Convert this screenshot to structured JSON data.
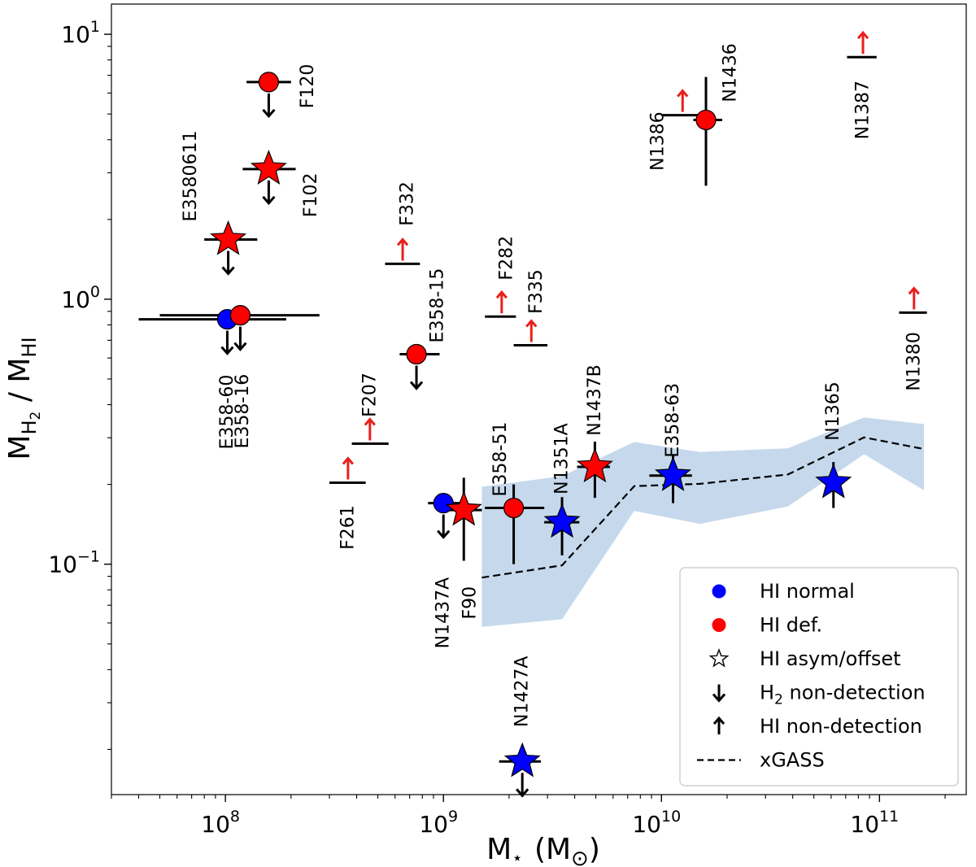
{
  "chart_data": {
    "type": "scatter",
    "xscale": "log",
    "yscale": "log",
    "xlim": [
      30000000.0,
      250000000000.0
    ],
    "ylim": [
      0.0135,
      13.0
    ],
    "xlabel": {
      "main": "M",
      "sub": "⋆",
      "rest": "(M",
      "sub2": "⊙",
      "close": ")"
    },
    "ylabel": {
      "main": "M",
      "sub1": "H",
      "sub1b": "2",
      "sep": " / M",
      "sub2": "HI"
    },
    "x_ticks": [
      {
        "value": 100000000.0,
        "base": "10",
        "exp": "8"
      },
      {
        "value": 1000000000.0,
        "base": "10",
        "exp": "9"
      },
      {
        "value": 10000000000.0,
        "base": "10",
        "exp": "10"
      },
      {
        "value": 100000000000.0,
        "base": "10",
        "exp": "11"
      }
    ],
    "y_ticks": [
      {
        "value": 0.1,
        "base": "10",
        "exp": "−1"
      },
      {
        "value": 1,
        "base": "10",
        "exp": "0"
      },
      {
        "value": 10,
        "base": "10",
        "exp": "1"
      }
    ],
    "colors": {
      "normal": "#0000ff",
      "deficient": "#ff0000",
      "band": "#c6d9ec",
      "arrow_red": "#e8201c",
      "black": "#000000"
    },
    "xgass": {
      "label": "xGASS",
      "x": [
        1500000000.0,
        3500000000.0,
        7500000000.0,
        15000000000.0,
        38000000000.0,
        85000000000.0,
        160000000000.0
      ],
      "median": [
        0.089,
        0.099,
        0.197,
        0.201,
        0.218,
        0.301,
        0.272
      ],
      "upper": [
        0.196,
        0.215,
        0.289,
        0.265,
        0.274,
        0.358,
        0.338
      ],
      "lower": [
        0.058,
        0.062,
        0.159,
        0.142,
        0.165,
        0.26,
        0.19
      ]
    },
    "points": [
      {
        "name": "F120",
        "marker": "circle",
        "color": "deficient",
        "x": 158000000.0,
        "y": 6.6,
        "xerr": [
          125000000.0,
          200000000.0
        ],
        "yerr": null,
        "h2_limit": true,
        "label_dx": 48,
        "label_dy": 5,
        "label_rotation": -90
      },
      {
        "name": "F102",
        "marker": "star",
        "color": "deficient",
        "x": 158000000.0,
        "y": 3.1,
        "xerr": [
          120000000.0,
          210000000.0
        ],
        "yerr": null,
        "h2_limit": true,
        "label_dx": 52,
        "label_dy": 32,
        "label_rotation": -90
      },
      {
        "name": "E3580611",
        "marker": "star",
        "color": "deficient",
        "x": 103000000.0,
        "y": 1.68,
        "xerr": [
          80000000.0,
          140000000.0
        ],
        "yerr": null,
        "h2_limit": true,
        "label_dx": -46,
        "label_dy": -78,
        "label_rotation": -90
      },
      {
        "name": "E358-60",
        "marker": "circle",
        "color": "normal",
        "x": 102000000.0,
        "y": 0.84,
        "xerr": [
          40000000.0,
          190000000.0
        ],
        "yerr": null,
        "h2_limit": true,
        "label_dx": 0,
        "label_dy": 114,
        "label_rotation": -90
      },
      {
        "name": "E358-16",
        "marker": "circle",
        "color": "deficient",
        "x": 117000000.0,
        "y": 0.87,
        "xerr": [
          50000000.0,
          270000000.0
        ],
        "yerr": null,
        "h2_limit": true,
        "label_dx": 3,
        "label_dy": 118,
        "label_rotation": -90
      },
      {
        "name": "E358-15",
        "marker": "circle",
        "color": "deficient",
        "x": 752000000.0,
        "y": 0.62,
        "xerr": [
          630000000.0,
          960000000.0
        ],
        "yerr": null,
        "h2_limit": true,
        "label_dx": 26,
        "label_dy": -60,
        "label_rotation": -90
      },
      {
        "name": "E358-51",
        "marker": "circle",
        "color": "deficient",
        "x": 2100000000.0,
        "y": 0.163,
        "xerr": [
          1550000000.0,
          2900000000.0
        ],
        "yerr": [
          0.1,
          0.2
        ],
        "h2_limit": false,
        "label_dx": -16,
        "label_dy": -60,
        "label_rotation": -90
      },
      {
        "name": "N1437A",
        "marker": "circle",
        "color": "normal",
        "x": 1000000000.0,
        "y": 0.17,
        "xerr": [
          850000000.0,
          1200000000.0
        ],
        "yerr": null,
        "h2_limit": true,
        "label_dx": 0,
        "label_dy": 135,
        "label_rotation": -90
      },
      {
        "name": "F90",
        "marker": "star",
        "color": "deficient",
        "x": 1240000000.0,
        "y": 0.16,
        "xerr": [
          1000000000.0,
          1500000000.0
        ],
        "yerr": [
          0.103,
          0.212
        ],
        "h2_limit": false,
        "label_dx": 8,
        "label_dy": 114,
        "label_rotation": -90
      },
      {
        "name": "N1351A",
        "marker": "star",
        "color": "normal",
        "x": 3500000000.0,
        "y": 0.144,
        "xerr": [
          2900000000.0,
          4200000000.0
        ],
        "yerr": [
          0.108,
          0.179
        ],
        "h2_limit": false,
        "label_dx": 0,
        "label_dy": -78,
        "label_rotation": -90
      },
      {
        "name": "N1437B",
        "marker": "star",
        "color": "deficient",
        "x": 4950000000.0,
        "y": 0.233,
        "xerr": [
          4100000000.0,
          5800000000.0
        ],
        "yerr": [
          0.178,
          0.29
        ],
        "h2_limit": false,
        "label_dx": 0,
        "label_dy": -82,
        "label_rotation": -90
      },
      {
        "name": "E358-63",
        "marker": "star",
        "color": "normal",
        "x": 11300000000.0,
        "y": 0.216,
        "xerr": [
          8800000000.0,
          13800000000.0
        ],
        "yerr": [
          0.17,
          0.26
        ],
        "h2_limit": false,
        "label_dx": 0,
        "label_dy": -68,
        "label_rotation": -90
      },
      {
        "name": "N1365",
        "marker": "star",
        "color": "normal",
        "x": 61500000000.0,
        "y": 0.203,
        "xerr": [
          56000000000.0,
          68000000000.0
        ],
        "yerr": [
          0.163,
          0.243
        ],
        "h2_limit": false,
        "label_dx": 0,
        "label_dy": -88,
        "label_rotation": -90
      },
      {
        "name": "N1427A",
        "marker": "star",
        "color": "normal",
        "x": 2300000000.0,
        "y": 0.018,
        "xerr": [
          1800000000.0,
          2800000000.0
        ],
        "yerr": null,
        "h2_limit": true,
        "label_dx": 0,
        "label_dy": -86,
        "label_rotation": -90
      },
      {
        "name": "N1436",
        "marker": "circle",
        "color": "deficient",
        "x": 16000000000.0,
        "y": 4.75,
        "xerr": [
          14000000000.0,
          19000000000.0
        ],
        "yerr": [
          2.68,
          6.9
        ],
        "h2_limit": false,
        "label_dx": 30,
        "label_dy": -58,
        "label_rotation": -90
      }
    ],
    "hi_limits": [
      {
        "name": "F332",
        "x": 650000000.0,
        "y": 1.36,
        "xerr": [
          540000000.0,
          780000000.0
        ],
        "label_dx": 6,
        "label_dy": -74,
        "label_rotation": -90
      },
      {
        "name": "F282",
        "x": 1850000000.0,
        "y": 0.86,
        "xerr": [
          1550000000.0,
          2150000000.0
        ],
        "label_dx": 6,
        "label_dy": -72,
        "label_rotation": -90
      },
      {
        "name": "F335",
        "x": 2530000000.0,
        "y": 0.67,
        "xerr": [
          2100000000.0,
          3000000000.0
        ],
        "label_dx": 6,
        "label_dy": -66,
        "label_rotation": -90
      },
      {
        "name": "F207",
        "x": 460000000.0,
        "y": 0.285,
        "xerr": [
          380000000.0,
          560000000.0
        ],
        "label_dx": 0,
        "label_dy": -60,
        "label_rotation": -90
      },
      {
        "name": "F261",
        "x": 365000000.0,
        "y": 0.203,
        "xerr": [
          300000000.0,
          440000000.0
        ],
        "label_dx": 0,
        "label_dy": 55,
        "label_rotation": -90
      },
      {
        "name": "N1386",
        "x": 12500000000.0,
        "y": 4.95,
        "xerr": [
          10000000000.0,
          15500000000.0
        ],
        "label_dx": -30,
        "label_dy": 32,
        "label_rotation": -90
      },
      {
        "name": "N1387",
        "x": 84000000000.0,
        "y": 8.2,
        "xerr": [
          71000000000.0,
          97000000000.0
        ],
        "label_dx": 0,
        "label_dy": 65,
        "label_rotation": -90
      },
      {
        "name": "N1380",
        "x": 144000000000.0,
        "y": 0.89,
        "xerr": [
          123000000000.0,
          165000000000.0
        ],
        "label_dx": 0,
        "label_dy": 60,
        "label_rotation": -90
      }
    ],
    "legend": {
      "placement": "bottom-right",
      "entries": [
        {
          "kind": "circle",
          "color": "normal",
          "label": "HI normal"
        },
        {
          "kind": "circle",
          "color": "deficient",
          "label": "HI def."
        },
        {
          "kind": "star",
          "color": "none",
          "label": "HI asym/offset"
        },
        {
          "kind": "down",
          "color": "black",
          "label": "H",
          "sub": "2",
          "rest": " non-detection"
        },
        {
          "kind": "up",
          "color": "black",
          "label": "HI non-detection"
        },
        {
          "kind": "dash",
          "color": "black",
          "label": "xGASS"
        }
      ]
    }
  }
}
